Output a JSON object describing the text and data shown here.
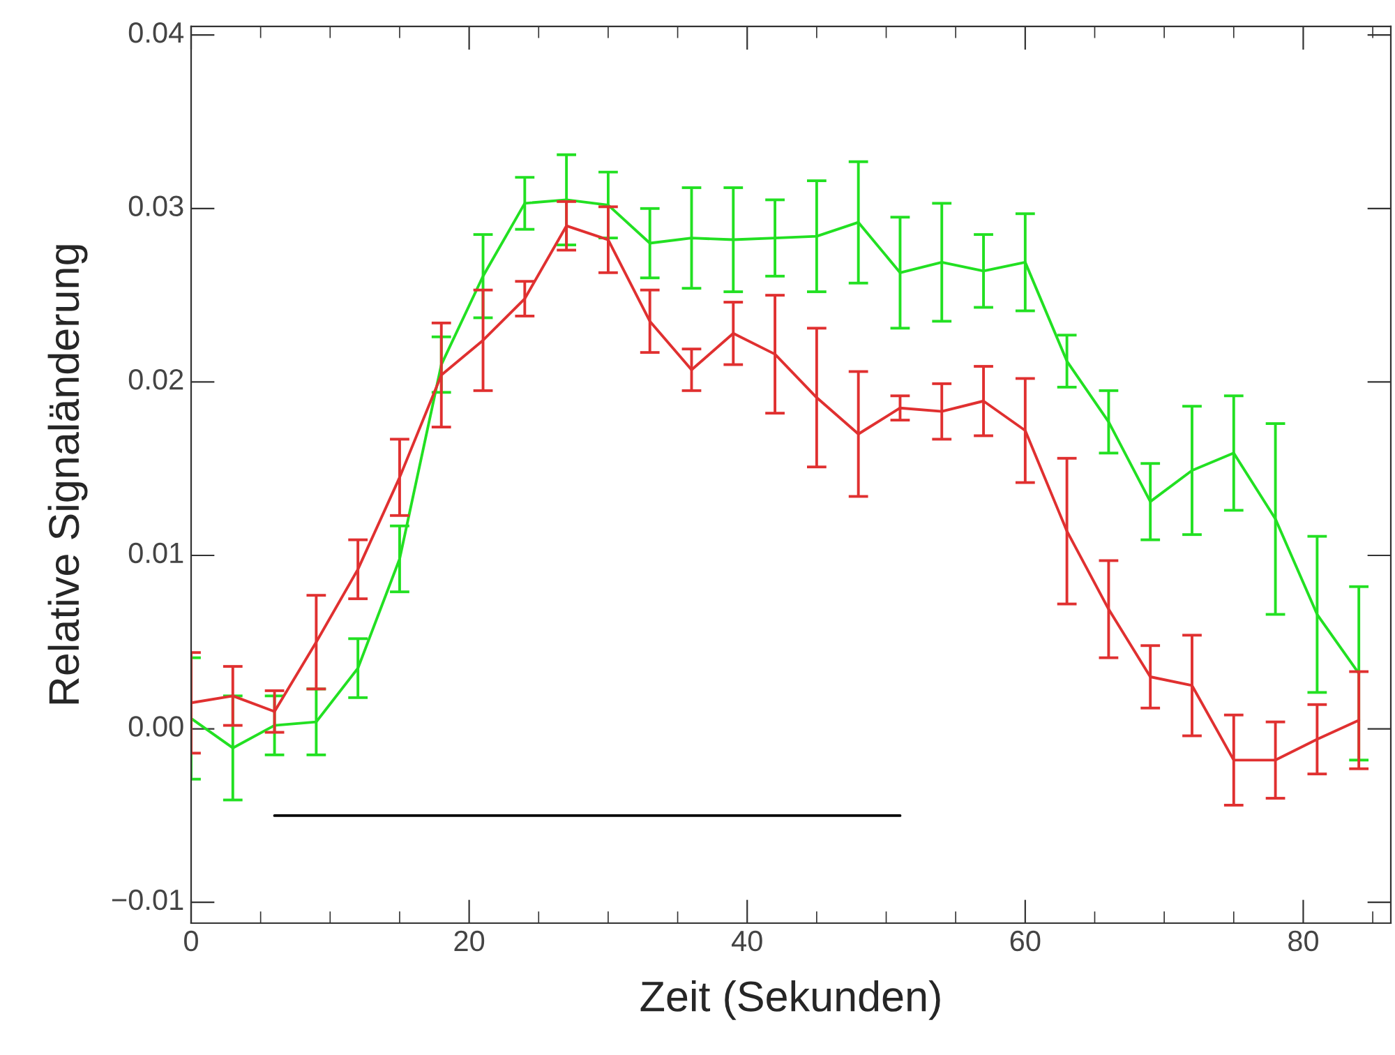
{
  "chart_data": {
    "type": "line",
    "xlabel": "Zeit (Sekunden)",
    "ylabel": "Relative Signaländerung",
    "x": [
      0,
      3,
      6,
      9,
      12,
      15,
      18,
      21,
      24,
      27,
      30,
      33,
      36,
      39,
      42,
      45,
      48,
      51,
      54,
      57,
      60,
      63,
      66,
      69,
      72,
      75,
      78,
      81,
      84
    ],
    "series": [
      {
        "color": "#22e022",
        "values": [
          0.0006,
          -0.0011,
          0.0002,
          0.0004,
          0.0035,
          0.0098,
          0.021,
          0.0261,
          0.0303,
          0.0305,
          0.0302,
          0.028,
          0.0283,
          0.0282,
          0.0283,
          0.0284,
          0.0292,
          0.0263,
          0.0269,
          0.0264,
          0.0269,
          0.0212,
          0.0177,
          0.0131,
          0.0149,
          0.0159,
          0.0121,
          0.0066,
          0.0032
        ],
        "errors": [
          0.0035,
          0.003,
          0.0017,
          0.0019,
          0.0017,
          0.0019,
          0.0016,
          0.0024,
          0.0015,
          0.0026,
          0.0019,
          0.002,
          0.0029,
          0.003,
          0.0022,
          0.0032,
          0.0035,
          0.0032,
          0.0034,
          0.0021,
          0.0028,
          0.0015,
          0.0018,
          0.0022,
          0.0037,
          0.0033,
          0.0055,
          0.0045,
          0.005
        ]
      },
      {
        "color": "#e03030",
        "values": [
          0.0015,
          0.0019,
          0.001,
          0.005,
          0.0092,
          0.0145,
          0.0204,
          0.0224,
          0.0248,
          0.029,
          0.0282,
          0.0235,
          0.0207,
          0.0228,
          0.0216,
          0.0191,
          0.017,
          0.0185,
          0.0183,
          0.0189,
          0.0172,
          0.0114,
          0.0069,
          0.003,
          0.0025,
          -0.0018,
          -0.0018,
          -0.0006,
          0.0005
        ],
        "errors": [
          0.0029,
          0.0017,
          0.0012,
          0.0027,
          0.0017,
          0.0022,
          0.003,
          0.0029,
          0.001,
          0.0014,
          0.0019,
          0.0018,
          0.0012,
          0.0018,
          0.0034,
          0.004,
          0.0036,
          0.0007,
          0.0016,
          0.002,
          0.003,
          0.0042,
          0.0028,
          0.0018,
          0.0029,
          0.0026,
          0.0022,
          0.002,
          0.0028
        ]
      },
      {
        "type": "line",
        "color": "#000000",
        "x": [
          6,
          51
        ],
        "values": [
          -0.005,
          -0.005
        ]
      }
    ],
    "xlim": [
      0,
      86.3
    ],
    "xticks": [
      0,
      20,
      40,
      60,
      80
    ],
    "ylim": [
      -0.0112,
      0.0405
    ],
    "yticks": [
      {
        "value": -0.01,
        "label": "−0.01"
      },
      {
        "value": 0,
        "label": "0.00"
      },
      0.01,
      0.02,
      0.03,
      0.04
    ],
    "grid": false,
    "marker": "none",
    "line_style": "solid"
  }
}
